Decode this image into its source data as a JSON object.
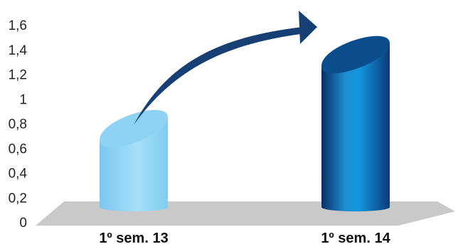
{
  "chart_data": {
    "type": "bar",
    "style": "3d-cylinder",
    "categories": [
      "1º sem. 13",
      "1º sem. 14"
    ],
    "values": [
      0.85,
      1.45
    ],
    "ylim": [
      0,
      1.6
    ],
    "yticks": [
      "0",
      "0,2",
      "0,4",
      "0,6",
      "0,8",
      "1",
      "1,2",
      "1,4",
      "1,6"
    ],
    "title": "",
    "xlabel": "",
    "ylabel": "",
    "grid": false,
    "annotation": "growth-arrow",
    "colors": {
      "bar_1": "#8fd3f4",
      "bar_2": "#0b4d8c",
      "arrow": "#163f73",
      "floor": "#c8c8c8"
    }
  }
}
